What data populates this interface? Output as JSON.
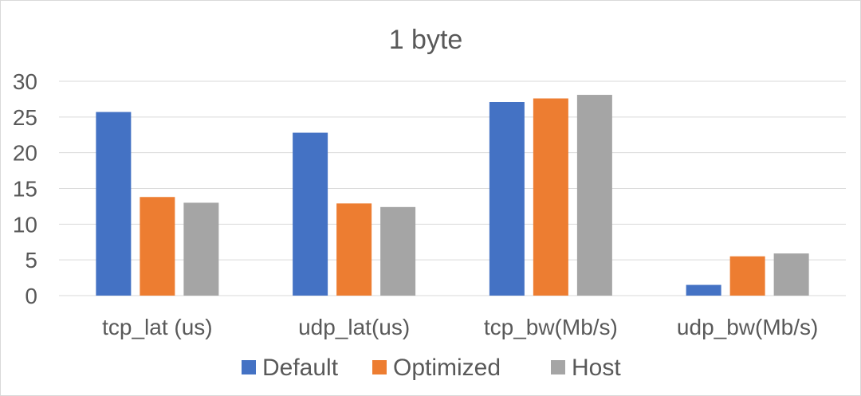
{
  "chart_data": {
    "type": "bar",
    "title": "1 byte",
    "xlabel": "",
    "ylabel": "",
    "categories": [
      "tcp_lat (us)",
      "udp_lat(us)",
      "tcp_bw(Mb/s)",
      "udp_bw(Mb/s)"
    ],
    "series": [
      {
        "name": "Default",
        "color": "#4472C4",
        "values": [
          25.7,
          22.8,
          27.1,
          1.5
        ]
      },
      {
        "name": "Optimized",
        "color": "#ED7D31",
        "values": [
          13.8,
          12.9,
          27.6,
          5.5
        ]
      },
      {
        "name": "Host",
        "color": "#A5A5A5",
        "values": [
          13.0,
          12.4,
          28.1,
          5.9
        ]
      }
    ],
    "ylim": [
      0,
      30
    ],
    "yticks": [
      0,
      5,
      10,
      15,
      20,
      25,
      30
    ],
    "grid": true,
    "legend_position": "bottom"
  }
}
